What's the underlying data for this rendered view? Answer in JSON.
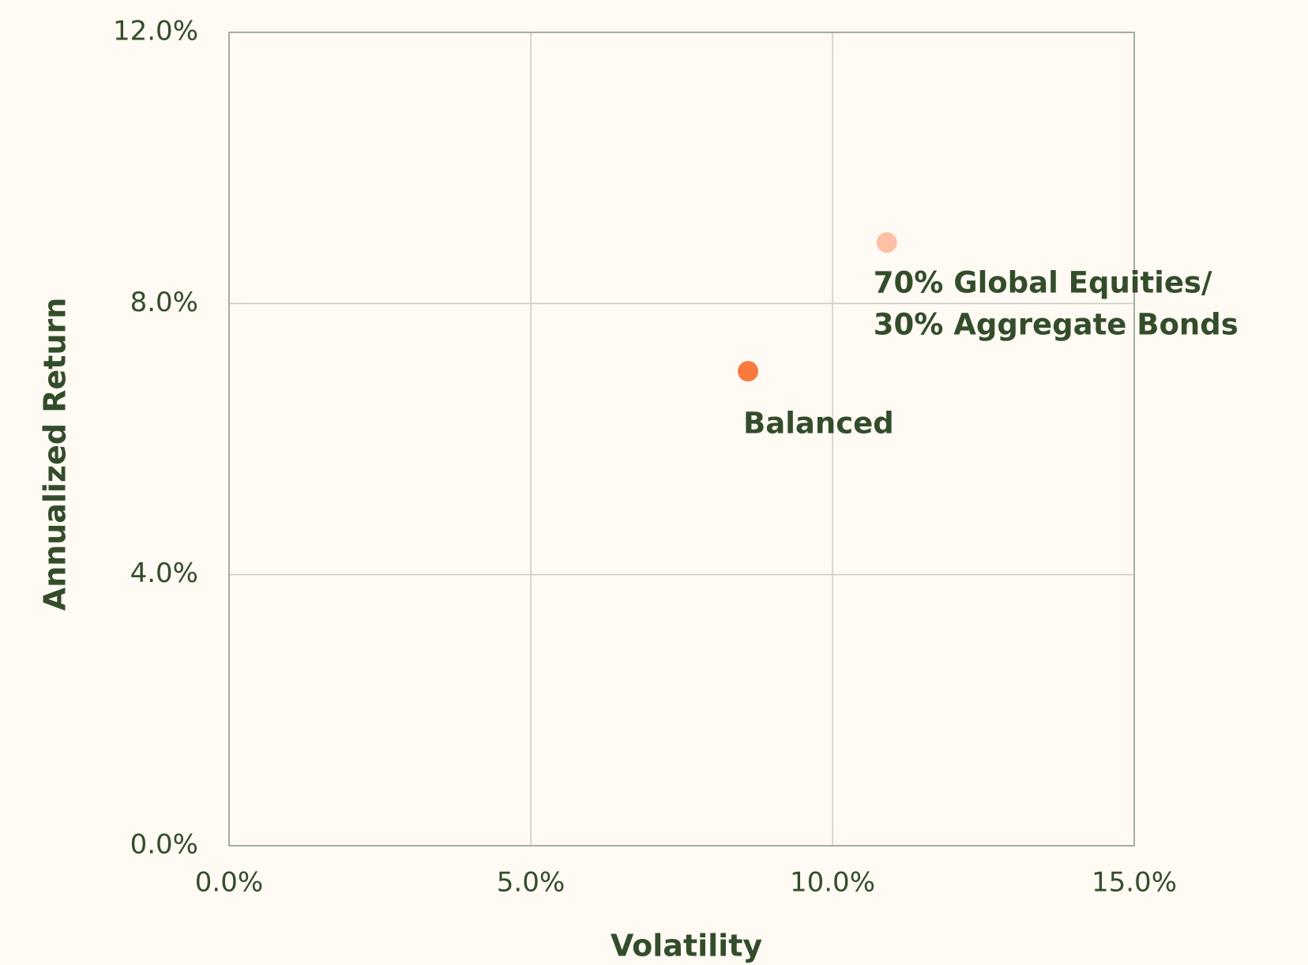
{
  "chart_data": {
    "type": "scatter",
    "xlabel": "Volatility",
    "ylabel": "Annualized Return",
    "xlim": [
      0,
      15
    ],
    "ylim": [
      0,
      12
    ],
    "xticks": [
      {
        "value": 0,
        "label": "0.0%"
      },
      {
        "value": 5,
        "label": "5.0%"
      },
      {
        "value": 10,
        "label": "10.0%"
      },
      {
        "value": 15,
        "label": "15.0%"
      }
    ],
    "yticks": [
      {
        "value": 0,
        "label": "0.0%"
      },
      {
        "value": 4,
        "label": "4.0%"
      },
      {
        "value": 8,
        "label": "8.0%"
      },
      {
        "value": 12,
        "label": "12.0%"
      }
    ],
    "grid": true,
    "series": [
      {
        "label": [
          "Balanced"
        ],
        "color": "#f97a3e",
        "x": [
          8.6
        ],
        "values": [
          7.0
        ]
      },
      {
        "label": [
          "70% Global Equities/",
          "30% Aggregate Bonds"
        ],
        "color": "#fcc0a4",
        "x": [
          10.9
        ],
        "values": [
          8.9
        ]
      }
    ]
  }
}
